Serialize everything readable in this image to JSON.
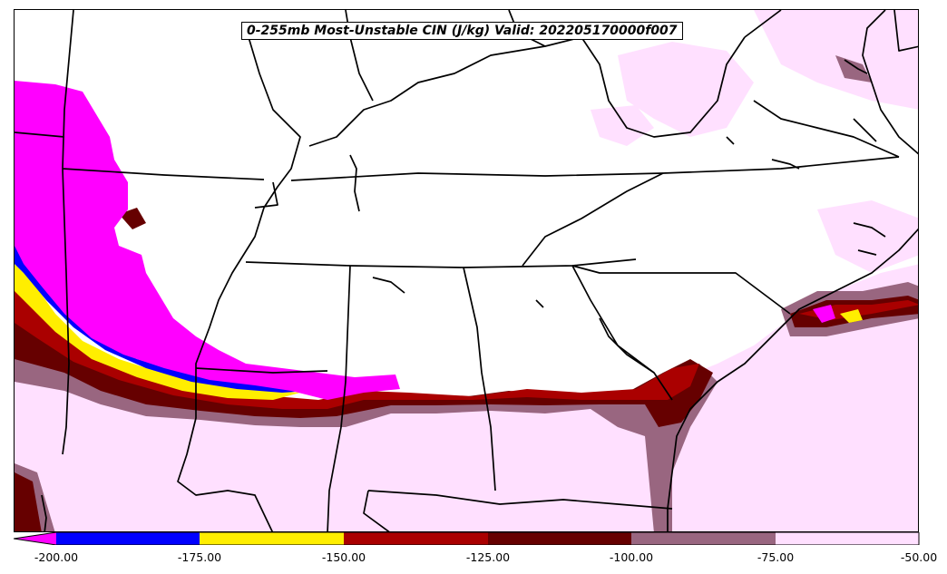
{
  "map": {
    "title": "0-255mb Most-Unstable CIN (J/kg) Valid: 202205170000f007",
    "colors": {
      "lt_-200": "#ff00ff",
      "-200_-175": "#0000ff",
      "-175_-150": "#ffee00",
      "-150_-125": "#aa0000",
      "-125_-100": "#660000",
      "-100_-75": "#996680",
      "-75_-50": "#ffe0ff",
      "borders": "#000000"
    }
  },
  "colorbar": {
    "ticks": [
      "-200.00",
      "-175.00",
      "-150.00",
      "-125.00",
      "-100.00",
      "-75.00",
      "-50.00"
    ],
    "extend": "min"
  }
}
